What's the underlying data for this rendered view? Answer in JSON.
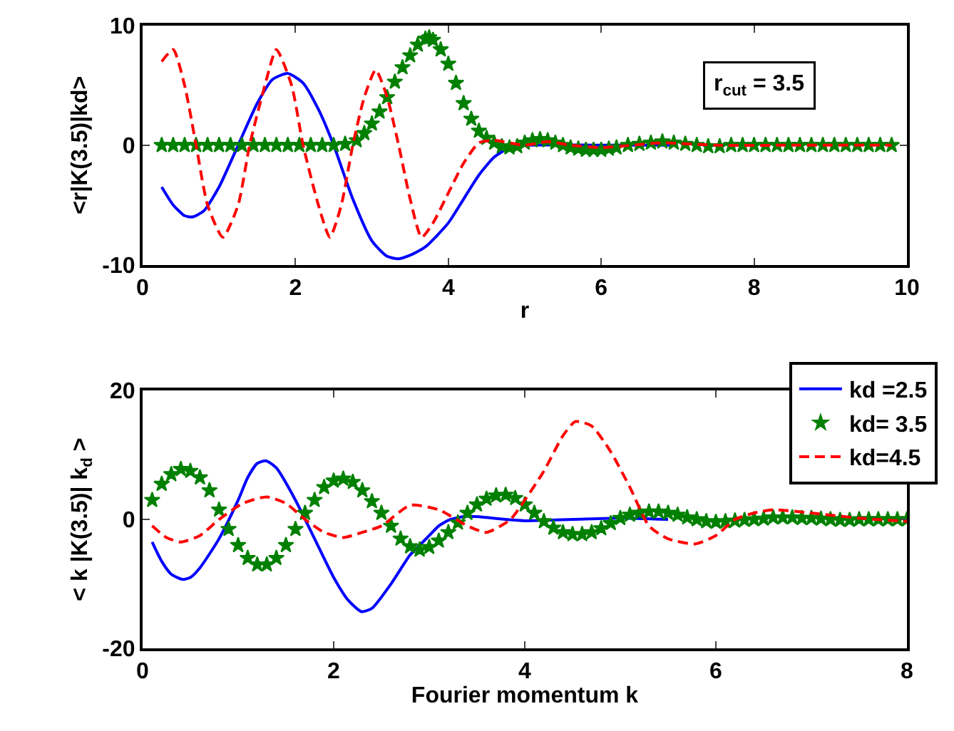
{
  "chart_data": [
    {
      "type": "line",
      "xlabel": "r",
      "ylabel": "<r|K(3.5)|kd>",
      "xlim": [
        0,
        10
      ],
      "xticks": [
        0,
        2,
        4,
        6,
        8,
        10
      ],
      "ylim": [
        -10,
        10
      ],
      "yticks": [
        -10,
        0,
        10
      ],
      "legend": false,
      "annotations": [
        "r$_{cut}$ = 3.5"
      ],
      "series": [
        {
          "color": "#0000ff",
          "line_style": "solid",
          "marker": "none",
          "x": [
            0.25,
            0.4,
            0.55,
            0.65,
            0.8,
            1.0,
            1.25,
            1.5,
            1.7,
            1.9,
            2.1,
            2.3,
            2.5,
            2.75,
            3.0,
            3.2,
            3.35,
            3.5,
            3.7,
            4.0,
            4.2,
            4.4,
            4.6,
            4.8,
            5.0,
            6.0,
            7.0
          ],
          "values": [
            -3.5,
            -5,
            -5.9,
            -6,
            -5.5,
            -3.5,
            0,
            3.5,
            5.5,
            6,
            5.2,
            3,
            0,
            -4.5,
            -8,
            -9.3,
            -9.5,
            -9.2,
            -8.5,
            -6.5,
            -4.5,
            -2.5,
            -1,
            -0.2,
            0,
            0,
            0
          ]
        },
        {
          "type": "scatter",
          "color": "#008000",
          "marker": "star",
          "x": [
            0.25,
            0.4,
            0.55,
            0.7,
            0.85,
            1.0,
            1.15,
            1.3,
            1.45,
            1.6,
            1.75,
            1.9,
            2.05,
            2.2,
            2.35,
            2.5,
            2.65,
            2.8,
            2.9,
            3.0,
            3.1,
            3.2,
            3.3,
            3.4,
            3.5,
            3.6,
            3.7,
            3.75,
            3.8,
            3.9,
            4.0,
            4.1,
            4.2,
            4.3,
            4.4,
            4.5,
            4.6,
            4.7,
            4.8,
            4.9,
            5.0,
            5.1,
            5.2,
            5.3,
            5.4,
            5.5,
            5.6,
            5.7,
            5.8,
            5.9,
            6.0,
            6.1,
            6.2,
            6.35,
            6.5,
            6.65,
            6.8,
            6.95,
            7.1,
            7.25,
            7.4,
            7.55,
            7.7,
            7.85,
            8.0,
            8.15,
            8.3,
            8.45,
            8.6,
            8.75,
            8.9,
            9.05,
            9.2,
            9.35,
            9.5,
            9.65,
            9.8
          ],
          "values": [
            0,
            0,
            0,
            0,
            0,
            0,
            0,
            0,
            0,
            0,
            0,
            0,
            0,
            0,
            0,
            0,
            0.1,
            0.4,
            1,
            1.8,
            2.8,
            4,
            5.3,
            6.5,
            7.5,
            8.4,
            8.9,
            9,
            8.8,
            8,
            6.8,
            5.2,
            3.5,
            2.2,
            1.2,
            0.6,
            0.2,
            -0.1,
            -0.2,
            -0.1,
            0.2,
            0.4,
            0.5,
            0.4,
            0.2,
            0,
            -0.2,
            -0.3,
            -0.4,
            -0.4,
            -0.4,
            -0.3,
            -0.2,
            0,
            0.1,
            0.2,
            0.3,
            0.2,
            0.1,
            0,
            -0.1,
            -0.1,
            0,
            0,
            0,
            0,
            0,
            0,
            0,
            0,
            0,
            0,
            0,
            0,
            0,
            0,
            0
          ]
        },
        {
          "color": "#ff0000",
          "line_style": "dashed",
          "marker": "none",
          "x": [
            0.25,
            0.4,
            0.55,
            0.7,
            0.85,
            1.05,
            1.25,
            1.4,
            1.6,
            1.75,
            1.95,
            2.1,
            2.3,
            2.45,
            2.6,
            2.75,
            2.9,
            3.05,
            3.2,
            3.35,
            3.5,
            3.65,
            3.8,
            4.0,
            4.2,
            4.4,
            4.6,
            5.0,
            5.3,
            5.6,
            6.0,
            6.4,
            6.8,
            7.5,
            8.5,
            9.8
          ],
          "values": [
            7,
            8,
            5,
            0,
            -5,
            -7.7,
            -5,
            0,
            5,
            8,
            5,
            0,
            -5,
            -7.7,
            -5,
            0,
            4,
            6.3,
            4,
            0,
            -4.5,
            -7.7,
            -6.5,
            -4,
            -1.5,
            0.2,
            0.4,
            0,
            0.3,
            0,
            -0.2,
            0,
            0.2,
            0,
            0,
            0
          ]
        }
      ]
    },
    {
      "type": "line",
      "xlabel": "Fourier momentum k",
      "ylabel": "< k |K(3.5)| k$_{d}$ >",
      "xlim": [
        0,
        8
      ],
      "xticks": [
        0,
        2,
        4,
        6,
        8
      ],
      "ylim": [
        -20,
        20
      ],
      "yticks": [
        -20,
        0,
        20
      ],
      "legend": "top right",
      "series": [
        {
          "name": "kd =2.5",
          "color": "#0000ff",
          "line_style": "solid",
          "marker": "none",
          "x": [
            0.1,
            0.2,
            0.3,
            0.42,
            0.5,
            0.6,
            0.8,
            1.0,
            1.1,
            1.2,
            1.29,
            1.4,
            1.6,
            1.8,
            2.0,
            2.15,
            2.29,
            2.4,
            2.6,
            2.8,
            2.9,
            3.0,
            3.1,
            3.22,
            3.4,
            3.6,
            3.8,
            4.0,
            4.5,
            5.0,
            5.5
          ],
          "values": [
            -3.5,
            -6.5,
            -8.5,
            -9.3,
            -9,
            -7.5,
            -3,
            3,
            6.5,
            8.7,
            9.1,
            8,
            3,
            -3,
            -9,
            -12.5,
            -14.3,
            -13.8,
            -10,
            -5.5,
            -4,
            -2.5,
            -1,
            0,
            0.5,
            0.3,
            0,
            -0.2,
            0,
            0.2,
            0
          ]
        },
        {
          "name": "kd= 3.5",
          "type": "scatter",
          "color": "#008000",
          "marker": "star",
          "x": [
            0.1,
            0.2,
            0.3,
            0.4,
            0.5,
            0.6,
            0.7,
            0.8,
            0.9,
            1.0,
            1.1,
            1.2,
            1.3,
            1.4,
            1.5,
            1.6,
            1.7,
            1.8,
            1.9,
            2.0,
            2.1,
            2.2,
            2.3,
            2.4,
            2.5,
            2.6,
            2.7,
            2.8,
            2.9,
            3.0,
            3.1,
            3.2,
            3.3,
            3.4,
            3.5,
            3.6,
            3.7,
            3.8,
            3.9,
            4.0,
            4.1,
            4.2,
            4.3,
            4.4,
            4.5,
            4.6,
            4.7,
            4.8,
            4.9,
            5.0,
            5.1,
            5.2,
            5.3,
            5.4,
            5.5,
            5.6,
            5.7,
            5.8,
            5.9,
            6.0,
            6.1,
            6.2,
            6.3,
            6.4,
            6.5,
            6.6,
            6.7,
            6.8,
            6.9,
            7.0,
            7.1,
            7.2,
            7.3,
            7.4,
            7.5,
            7.6,
            7.7,
            7.8,
            7.9,
            8.0
          ],
          "values": [
            3,
            5.5,
            7,
            7.8,
            7.5,
            6.5,
            4.5,
            1.5,
            -1.5,
            -4,
            -6,
            -7,
            -7,
            -6,
            -4,
            -1.5,
            1,
            3,
            5,
            6,
            6.3,
            5.8,
            4.5,
            2.8,
            1,
            -1,
            -3,
            -4.2,
            -4.7,
            -4.3,
            -3.3,
            -2,
            -0.5,
            1,
            2.3,
            3.2,
            3.7,
            3.8,
            3.3,
            2.3,
            1,
            -0.3,
            -1.3,
            -2,
            -2.3,
            -2.3,
            -2,
            -1.4,
            -0.6,
            0.2,
            0.7,
            1,
            1.2,
            1.2,
            1,
            0.7,
            0.3,
            0,
            -0.3,
            -0.4,
            -0.3,
            -0.2,
            -0.1,
            0,
            0.1,
            0.3,
            0.3,
            0.3,
            0.2,
            0.2,
            0.1,
            0,
            -0.1,
            -0.1,
            0,
            0,
            0,
            0,
            0,
            0
          ]
        },
        {
          "name": "kd=4.5",
          "color": "#ff0000",
          "line_style": "dashed",
          "marker": "none",
          "x": [
            0.1,
            0.25,
            0.4,
            0.6,
            0.8,
            1.05,
            1.3,
            1.5,
            1.7,
            1.9,
            2.1,
            2.3,
            2.5,
            2.8,
            3.1,
            3.4,
            3.6,
            3.85,
            4.0,
            4.2,
            4.4,
            4.53,
            4.7,
            4.9,
            5.1,
            5.3,
            5.5,
            5.78,
            6.0,
            6.2,
            6.4,
            6.6,
            7.0,
            7.5,
            8.0
          ],
          "values": [
            -1,
            -2.8,
            -3.5,
            -2.5,
            0,
            2.5,
            3.5,
            2.5,
            0,
            -2,
            -2.8,
            -2,
            -1,
            2.2,
            1.5,
            -1,
            -2,
            0,
            3,
            7.5,
            13,
            15.2,
            14.5,
            10.5,
            5,
            -1,
            -3,
            -3.8,
            -2.5,
            0,
            1,
            1.5,
            1,
            0.2,
            -0.3
          ]
        }
      ]
    }
  ]
}
